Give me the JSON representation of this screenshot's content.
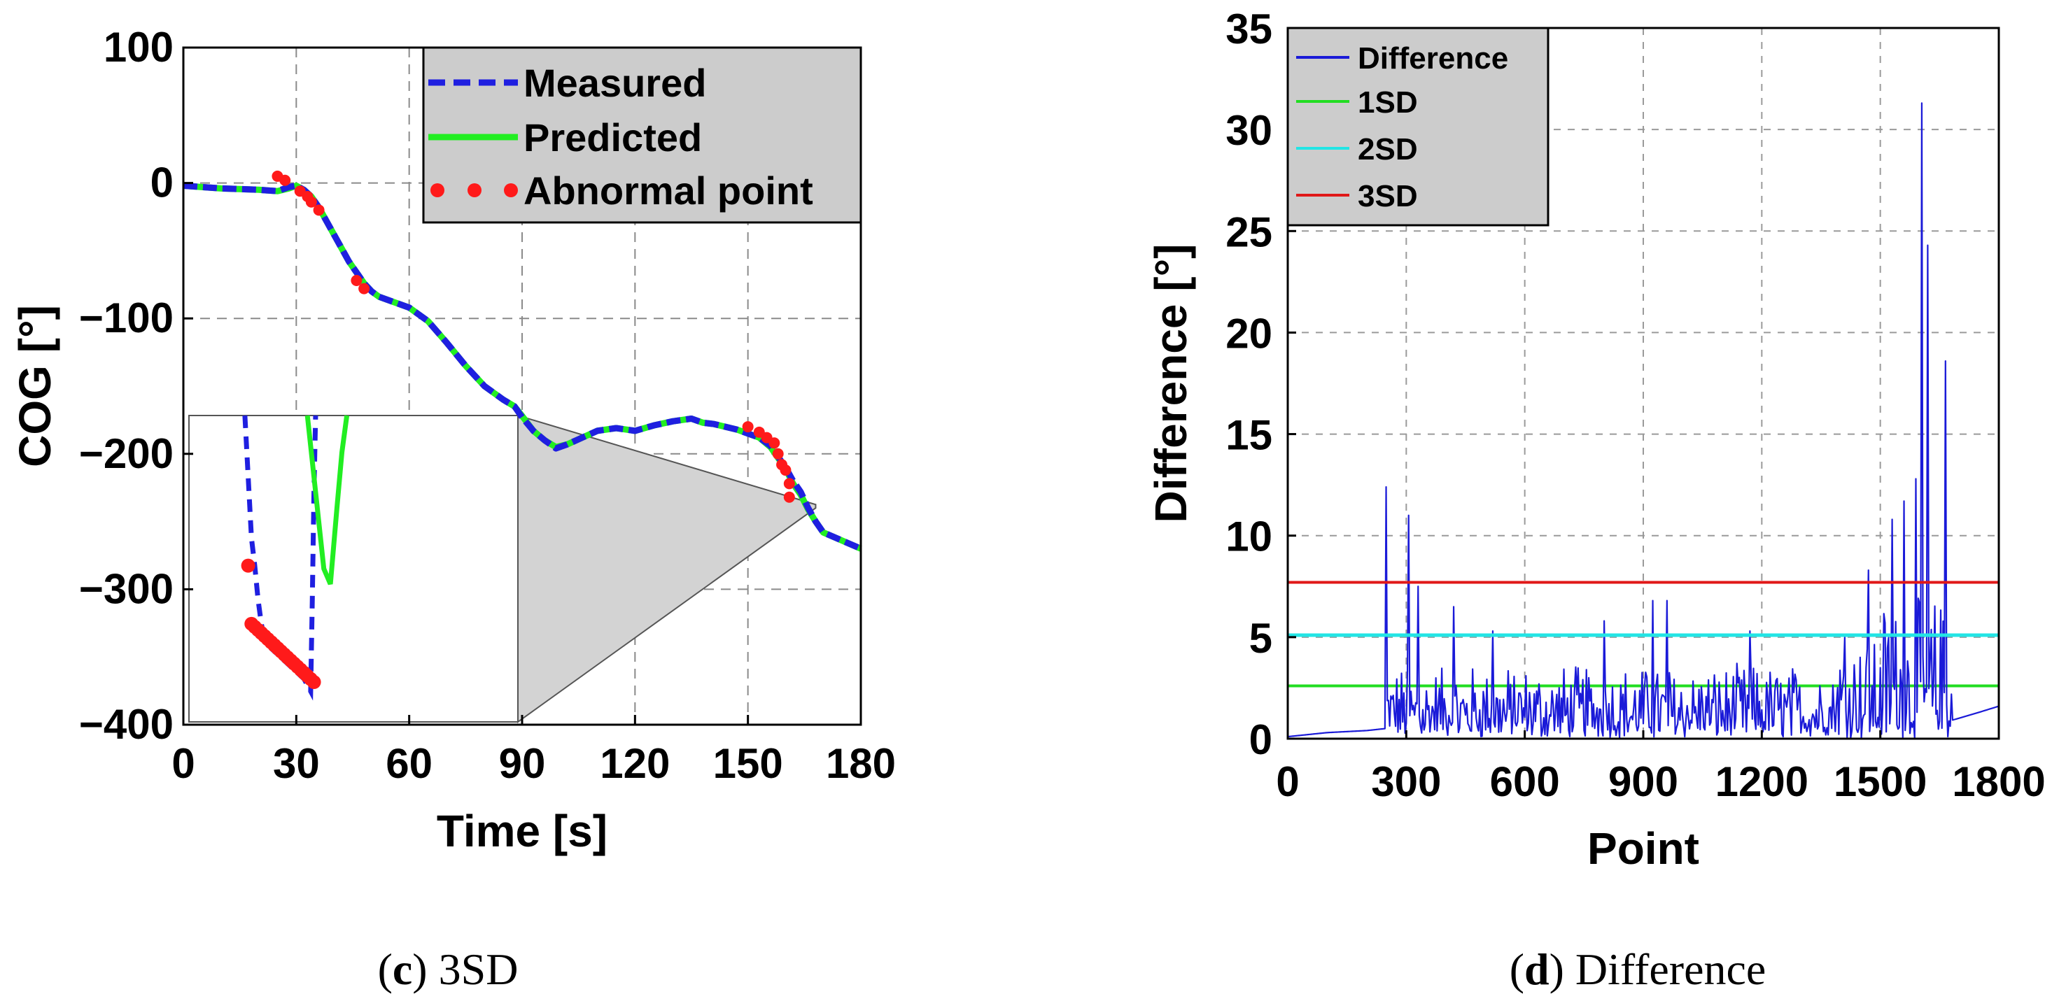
{
  "chart_data": [
    {
      "id": "c",
      "type": "line",
      "caption": {
        "label": "c",
        "text": "3SD"
      },
      "xlabel": "Time [s]",
      "ylabel": "COG [°]",
      "xlim": [
        0,
        180
      ],
      "ylim": [
        -400,
        100
      ],
      "xticks": [
        0,
        30,
        60,
        90,
        120,
        150,
        180
      ],
      "yticks": [
        100,
        0,
        -100,
        -200,
        -300,
        -400
      ],
      "ytick_labels": [
        "100",
        "0",
        "−100",
        "−200",
        "−300",
        "−400"
      ],
      "grid": true,
      "legend_position": "top-right",
      "legend": [
        "Measured",
        "Predicted",
        "Abnormal point"
      ],
      "colors": {
        "measured": "#1f1fe0",
        "predicted": "#22ee22",
        "abnormal": "#ff1a1a",
        "inset_fill": "#d3d3d3"
      },
      "series": [
        {
          "name": "Measured",
          "style": "dashed",
          "x": [
            0,
            10,
            20,
            25,
            28,
            30,
            32,
            34,
            36,
            38,
            40,
            42,
            44,
            46,
            48,
            50,
            52,
            54,
            56,
            58,
            60,
            65,
            70,
            75,
            80,
            85,
            88,
            90,
            93,
            96,
            99,
            102,
            106,
            110,
            115,
            120,
            125,
            130,
            135,
            138,
            141,
            144,
            147,
            150,
            153,
            156,
            158,
            160,
            162,
            164,
            166,
            168,
            170,
            175,
            180
          ],
          "y": [
            -2,
            -4,
            -5,
            -6,
            -3,
            -2,
            -5,
            -10,
            -18,
            -28,
            -38,
            -48,
            -58,
            -66,
            -74,
            -80,
            -84,
            -86,
            -88,
            -90,
            -92,
            -102,
            -118,
            -135,
            -150,
            -160,
            -165,
            -173,
            -183,
            -190,
            -196,
            -193,
            -188,
            -183,
            -181,
            -183,
            -179,
            -176,
            -174,
            -177,
            -178,
            -180,
            -182,
            -185,
            -188,
            -194,
            -202,
            -210,
            -220,
            -228,
            -240,
            -250,
            -258,
            -264,
            -270
          ]
        },
        {
          "name": "Predicted",
          "style": "solid",
          "x": [
            0,
            10,
            20,
            25,
            28,
            30,
            32,
            34,
            36,
            38,
            40,
            42,
            44,
            46,
            48,
            50,
            52,
            54,
            56,
            58,
            60,
            65,
            70,
            75,
            80,
            85,
            88,
            90,
            93,
            96,
            99,
            102,
            106,
            110,
            115,
            120,
            125,
            130,
            135,
            138,
            141,
            144,
            147,
            150,
            153,
            156,
            158,
            160,
            162,
            164,
            166,
            168,
            170,
            175,
            180
          ],
          "y": [
            -2,
            -4,
            -5,
            -6,
            -4,
            -2,
            -5,
            -10,
            -18,
            -28,
            -38,
            -48,
            -58,
            -66,
            -74,
            -80,
            -84,
            -86,
            -88,
            -90,
            -92,
            -102,
            -118,
            -135,
            -150,
            -160,
            -165,
            -172,
            -183,
            -190,
            -195,
            -193,
            -188,
            -183,
            -181,
            -183,
            -179,
            -176,
            -174,
            -177,
            -178,
            -180,
            -182,
            -185,
            -188,
            -195,
            -203,
            -211,
            -222,
            -230,
            -241,
            -250,
            -258,
            -264,
            -270
          ]
        },
        {
          "name": "Abnormal point",
          "style": "markers",
          "x": [
            25,
            27,
            31,
            33,
            34,
            36,
            46,
            48,
            150,
            153,
            155,
            157,
            158,
            159,
            160,
            161,
            161
          ],
          "y": [
            5,
            2,
            -6,
            -10,
            -14,
            -20,
            -72,
            -78,
            -180,
            -184,
            -188,
            -192,
            -200,
            -208,
            -212,
            -222,
            -232
          ]
        }
      ],
      "inset": {
        "zoom_x": [
          158,
          168
        ],
        "zoom_y": [
          -240,
          -175
        ],
        "measured": {
          "x": [
            0.17,
            0.18,
            0.19,
            0.2,
            0.21,
            0.22,
            0.23,
            0.25,
            0.27,
            0.29,
            0.31,
            0.33,
            0.35,
            0.36,
            0.37,
            0.375,
            0.38,
            0.385
          ],
          "y": [
            0,
            0.2,
            0.4,
            0.49,
            0.6,
            0.68,
            0.73,
            0.76,
            0.78,
            0.8,
            0.82,
            0.84,
            0.86,
            0.88,
            0.9,
            0.6,
            0.25,
            0
          ]
        },
        "predicted": {
          "x": [
            0.36,
            0.385,
            0.41,
            0.43,
            0.45,
            0.465,
            0.48
          ],
          "y": [
            0,
            0.25,
            0.5,
            0.55,
            0.3,
            0.12,
            0
          ]
        },
        "abnormal": {
          "x": [
            0.18,
            0.19,
            0.2,
            0.21,
            0.22,
            0.23,
            0.24,
            0.25,
            0.26,
            0.27,
            0.28,
            0.29,
            0.3,
            0.31,
            0.32,
            0.33,
            0.34,
            0.35,
            0.36,
            0.37,
            0.38
          ],
          "y": [
            0.49,
            0.68,
            0.69,
            0.7,
            0.71,
            0.72,
            0.73,
            0.74,
            0.75,
            0.76,
            0.77,
            0.78,
            0.79,
            0.8,
            0.81,
            0.82,
            0.83,
            0.84,
            0.85,
            0.86,
            0.87
          ]
        }
      }
    },
    {
      "id": "d",
      "type": "line",
      "caption": {
        "label": "d",
        "text": "Difference"
      },
      "xlabel": "Point",
      "ylabel": "Difference [°]",
      "xlim": [
        0,
        1800
      ],
      "ylim": [
        0,
        35
      ],
      "xticks": [
        0,
        300,
        600,
        900,
        1200,
        1500,
        1800
      ],
      "yticks": [
        0,
        5,
        10,
        15,
        20,
        25,
        30,
        35
      ],
      "grid": true,
      "legend_position": "top-left",
      "legend": [
        "Difference",
        "1SD",
        "2SD",
        "3SD"
      ],
      "thresholds": {
        "1SD": 2.6,
        "2SD": 5.1,
        "3SD": 7.7
      },
      "colors": {
        "difference": "#1a1ad8",
        "1SD": "#22dd22",
        "2SD": "#22e5e5",
        "3SD": "#e01818"
      },
      "series_outline": {
        "baseline": [
          [
            0,
            0.1
          ],
          [
            100,
            0.3
          ],
          [
            200,
            0.4
          ],
          [
            248,
            0.5
          ],
          [
            1680,
            0.9
          ],
          [
            1750,
            1.3
          ],
          [
            1800,
            1.6
          ]
        ],
        "noise_range": [
          248,
          1680
        ],
        "peaks": [
          [
            250,
            12.4
          ],
          [
            305,
            11.0
          ],
          [
            330,
            7.5
          ],
          [
            420,
            6.5
          ],
          [
            520,
            5.3
          ],
          [
            800,
            5.8
          ],
          [
            925,
            6.8
          ],
          [
            960,
            6.8
          ],
          [
            1170,
            5.3
          ],
          [
            1410,
            5.0
          ],
          [
            1470,
            8.3
          ],
          [
            1530,
            10.8
          ],
          [
            1560,
            11.7
          ],
          [
            1590,
            12.8
          ],
          [
            1605,
            31.3
          ],
          [
            1620,
            24.3
          ],
          [
            1665,
            18.6
          ]
        ]
      }
    }
  ]
}
